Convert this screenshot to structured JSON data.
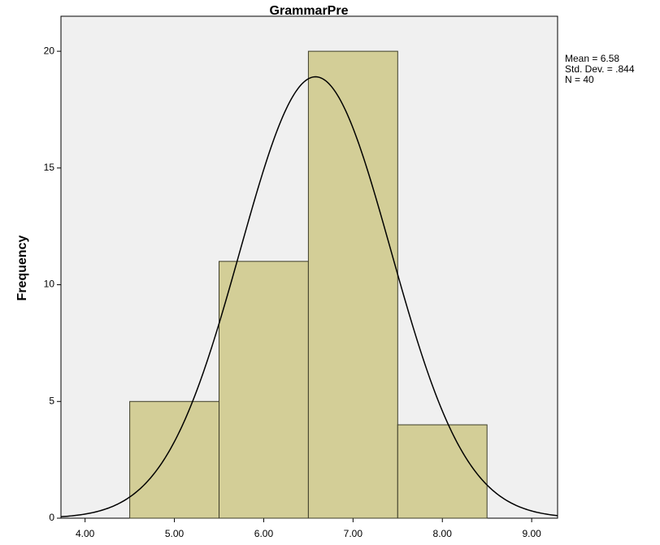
{
  "chart_data": {
    "type": "histogram",
    "title": "GrammarPre",
    "y_label": "Frequency",
    "bins": [
      4.5,
      5.5,
      6.5,
      7.5,
      8.5
    ],
    "counts": [
      5,
      11,
      20,
      4
    ],
    "color": "#d3ce97",
    "xlim": [
      3.73,
      9.29
    ],
    "ylim": [
      0,
      21.5
    ],
    "xticks": [
      {
        "value": 4,
        "label": "4.00"
      },
      {
        "value": 5,
        "label": "5.00"
      },
      {
        "value": 6,
        "label": "6.00"
      },
      {
        "value": 7,
        "label": "7.00"
      },
      {
        "value": 8,
        "label": "8.00"
      },
      {
        "value": 9,
        "label": "9.00"
      }
    ],
    "yticks": [
      0,
      5,
      10,
      15,
      20
    ],
    "mean": {
      "value": 6.58,
      "label": "Mean = 6.58"
    },
    "std_dev": {
      "value": 0.844,
      "label": "Std. Dev. = .844"
    },
    "n": {
      "value": 40,
      "label": "N = 40"
    },
    "normal_curve": true
  }
}
